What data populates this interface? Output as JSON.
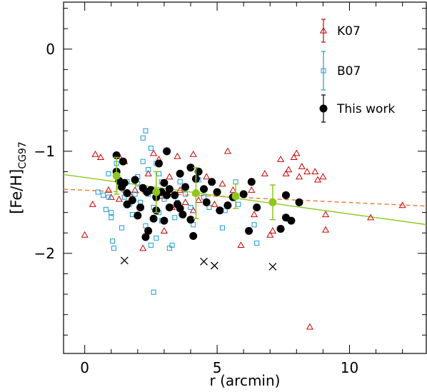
{
  "chart_data": {
    "type": "scatter",
    "xlabel": "r (arcmin)",
    "ylabel_main": "[Fe/H]",
    "ylabel_sub": "CG97",
    "xlim": [
      -0.8,
      12.9
    ],
    "ylim": [
      -2.98,
      0.46
    ],
    "x_ticks": [
      0,
      5,
      10
    ],
    "y_ticks": [
      -2,
      -1,
      0
    ],
    "x_minor_step": 1,
    "y_minor_step": 0.2,
    "colors": {
      "k07": "#cc0000",
      "b07": "#1a9ad6",
      "this_work": "#000000",
      "binned": "#8cc81e",
      "fit_this_work": "#8cc81e",
      "fit_k07": "#f07a2a",
      "outlier": "#000000"
    },
    "legend": [
      {
        "label": "K07",
        "marker": "triangle",
        "color": "#cc0000"
      },
      {
        "label": "B07",
        "marker": "square",
        "color": "#1a9ad6"
      },
      {
        "label": "This work",
        "marker": "circle",
        "color": "#000000"
      }
    ],
    "series": [
      {
        "name": "K07",
        "marker": "triangle",
        "points": [
          [
            0.0,
            -1.82
          ],
          [
            0.3,
            -1.52
          ],
          [
            0.4,
            -1.03
          ],
          [
            0.6,
            -1.06
          ],
          [
            0.9,
            -1.38
          ],
          [
            1.0,
            -1.45
          ],
          [
            1.3,
            -1.47
          ],
          [
            1.3,
            -1.05
          ],
          [
            1.5,
            -1.1
          ],
          [
            1.7,
            -1.42
          ],
          [
            1.9,
            -1.38
          ],
          [
            2.1,
            -1.55
          ],
          [
            2.2,
            -1.95
          ],
          [
            2.4,
            -1.22
          ],
          [
            2.6,
            -1.02
          ],
          [
            2.8,
            -1.08
          ],
          [
            2.9,
            -1.44
          ],
          [
            3.0,
            -1.78
          ],
          [
            3.2,
            -1.25
          ],
          [
            3.3,
            -1.55
          ],
          [
            3.5,
            -1.05
          ],
          [
            3.6,
            -1.38
          ],
          [
            3.8,
            -1.5
          ],
          [
            4.1,
            -1.03
          ],
          [
            4.1,
            -1.58
          ],
          [
            4.3,
            -1.48
          ],
          [
            4.6,
            -1.25
          ],
          [
            4.9,
            -1.52
          ],
          [
            5.2,
            -1.32
          ],
          [
            5.4,
            -1.0
          ],
          [
            5.6,
            -1.38
          ],
          [
            5.9,
            -1.92
          ],
          [
            6.0,
            -1.42
          ],
          [
            6.3,
            -1.38
          ],
          [
            6.4,
            -1.62
          ],
          [
            6.8,
            -1.22
          ],
          [
            7.0,
            -1.82
          ],
          [
            7.1,
            -1.78
          ],
          [
            7.4,
            -1.08
          ],
          [
            7.6,
            -1.22
          ],
          [
            7.7,
            -1.18
          ],
          [
            7.9,
            -1.06
          ],
          [
            8.0,
            -1.02
          ],
          [
            8.1,
            -1.25
          ],
          [
            8.2,
            -1.15
          ],
          [
            8.4,
            -1.2
          ],
          [
            8.5,
            -2.72
          ],
          [
            8.7,
            -1.2
          ],
          [
            8.8,
            -1.28
          ],
          [
            9.0,
            -1.25
          ],
          [
            9.1,
            -1.62
          ],
          [
            9.1,
            -1.77
          ],
          [
            10.8,
            -1.65
          ],
          [
            12.0,
            -1.53
          ]
        ]
      },
      {
        "name": "B07",
        "marker": "square",
        "points": [
          [
            0.5,
            -1.4
          ],
          [
            0.7,
            -1.43
          ],
          [
            0.8,
            -1.57
          ],
          [
            0.9,
            -1.22
          ],
          [
            0.9,
            -1.45
          ],
          [
            1.0,
            -1.6
          ],
          [
            1.0,
            -1.65
          ],
          [
            1.05,
            -1.88
          ],
          [
            1.1,
            -1.95
          ],
          [
            1.2,
            -1.12
          ],
          [
            1.3,
            -1.35
          ],
          [
            1.4,
            -1.75
          ],
          [
            1.5,
            -1.3
          ],
          [
            1.5,
            -1.45
          ],
          [
            1.6,
            -1.3
          ],
          [
            1.7,
            -1.52
          ],
          [
            1.8,
            -1.62
          ],
          [
            1.9,
            -1.42
          ],
          [
            2.0,
            -1.25
          ],
          [
            2.0,
            -1.32
          ],
          [
            2.1,
            -1.5
          ],
          [
            2.2,
            -0.87
          ],
          [
            2.2,
            -1.1
          ],
          [
            2.3,
            -0.8
          ],
          [
            2.3,
            -1.73
          ],
          [
            2.4,
            -1.18
          ],
          [
            2.4,
            -1.42
          ],
          [
            2.5,
            -0.97
          ],
          [
            2.5,
            -1.92
          ],
          [
            2.6,
            -2.38
          ],
          [
            2.6,
            -1.55
          ],
          [
            2.7,
            -1.85
          ],
          [
            2.7,
            -1.12
          ],
          [
            2.8,
            -1.22
          ],
          [
            2.8,
            -1.6
          ],
          [
            2.9,
            -1.68
          ],
          [
            2.9,
            -1.3
          ],
          [
            3.0,
            -1.47
          ],
          [
            3.2,
            -1.95
          ],
          [
            3.3,
            -1.92
          ],
          [
            3.4,
            -1.65
          ],
          [
            3.5,
            -1.5
          ],
          [
            3.6,
            -1.3
          ],
          [
            3.8,
            -1.42
          ],
          [
            4.0,
            -1.55
          ],
          [
            4.1,
            -1.72
          ],
          [
            4.3,
            -1.28
          ],
          [
            4.5,
            -1.45
          ],
          [
            4.7,
            -1.55
          ],
          [
            5.2,
            -1.75
          ],
          [
            5.3,
            -1.58
          ],
          [
            5.7,
            -1.3
          ],
          [
            5.8,
            -1.52
          ],
          [
            6.4,
            -1.72
          ],
          [
            6.5,
            -1.9
          ]
        ]
      },
      {
        "name": "This work",
        "marker": "circle",
        "points": [
          [
            1.2,
            -1.04
          ],
          [
            1.2,
            -1.2
          ],
          [
            1.3,
            -1.29
          ],
          [
            1.4,
            -1.35
          ],
          [
            1.45,
            -1.1
          ],
          [
            1.5,
            -1.31
          ],
          [
            1.6,
            -1.41
          ],
          [
            1.6,
            -1.52
          ],
          [
            1.8,
            -1.48
          ],
          [
            1.9,
            -1.28
          ],
          [
            2.0,
            -1.63
          ],
          [
            2.1,
            -1.55
          ],
          [
            2.2,
            -1.36
          ],
          [
            2.3,
            -1.84
          ],
          [
            2.35,
            -1.4
          ],
          [
            2.4,
            -1.78
          ],
          [
            2.5,
            -1.38
          ],
          [
            2.6,
            -1.66
          ],
          [
            2.7,
            -1.58
          ],
          [
            2.7,
            -1.45
          ],
          [
            2.8,
            -1.12
          ],
          [
            2.9,
            -1.4
          ],
          [
            3.0,
            -1.31
          ],
          [
            3.0,
            -1.68
          ],
          [
            3.1,
            -1.0
          ],
          [
            3.1,
            -1.43
          ],
          [
            3.2,
            -1.37
          ],
          [
            3.2,
            -1.55
          ],
          [
            3.4,
            -1.43
          ],
          [
            3.5,
            -1.52
          ],
          [
            3.6,
            -1.22
          ],
          [
            3.6,
            -1.56
          ],
          [
            3.7,
            -1.62
          ],
          [
            3.8,
            -1.35
          ],
          [
            4.0,
            -1.16
          ],
          [
            4.0,
            -1.67
          ],
          [
            4.1,
            -1.83
          ],
          [
            4.2,
            -1.27
          ],
          [
            4.3,
            -1.2
          ],
          [
            4.5,
            -1.37
          ],
          [
            4.6,
            -1.5
          ],
          [
            4.8,
            -1.3
          ],
          [
            5.0,
            -1.4
          ],
          [
            5.1,
            -1.58
          ],
          [
            5.4,
            -1.53
          ],
          [
            5.6,
            -1.45
          ],
          [
            6.0,
            -1.42
          ],
          [
            6.2,
            -1.78
          ],
          [
            6.3,
            -1.3
          ],
          [
            6.5,
            -1.55
          ],
          [
            7.6,
            -1.43
          ],
          [
            7.6,
            -1.65
          ],
          [
            7.8,
            -1.68
          ],
          [
            8.1,
            -1.5
          ],
          [
            7.4,
            -1.76
          ]
        ]
      },
      {
        "name": "Binned",
        "marker": "circle",
        "points": [
          [
            1.2,
            -1.24
          ],
          [
            2.7,
            -1.4
          ],
          [
            4.2,
            -1.41
          ],
          [
            5.7,
            -1.44
          ],
          [
            7.1,
            -1.5
          ]
        ],
        "errors": [
          0.18,
          0.2,
          0.25,
          0.12,
          0.17
        ]
      },
      {
        "name": "Excluded",
        "marker": "cross",
        "points": [
          [
            1.5,
            -2.07
          ],
          [
            4.5,
            -2.08
          ],
          [
            4.9,
            -2.12
          ],
          [
            7.1,
            -2.13
          ]
        ]
      }
    ],
    "fits": [
      {
        "name": "This work fit",
        "style": "solid",
        "color": "#8cc81e",
        "x": [
          -0.8,
          12.9
        ],
        "y": [
          -1.228,
          -1.718
        ]
      },
      {
        "name": "K07 fit",
        "style": "dashed",
        "color": "#f07a2a",
        "x": [
          -0.8,
          12.9
        ],
        "y": [
          -1.372,
          -1.537
        ]
      }
    ]
  }
}
